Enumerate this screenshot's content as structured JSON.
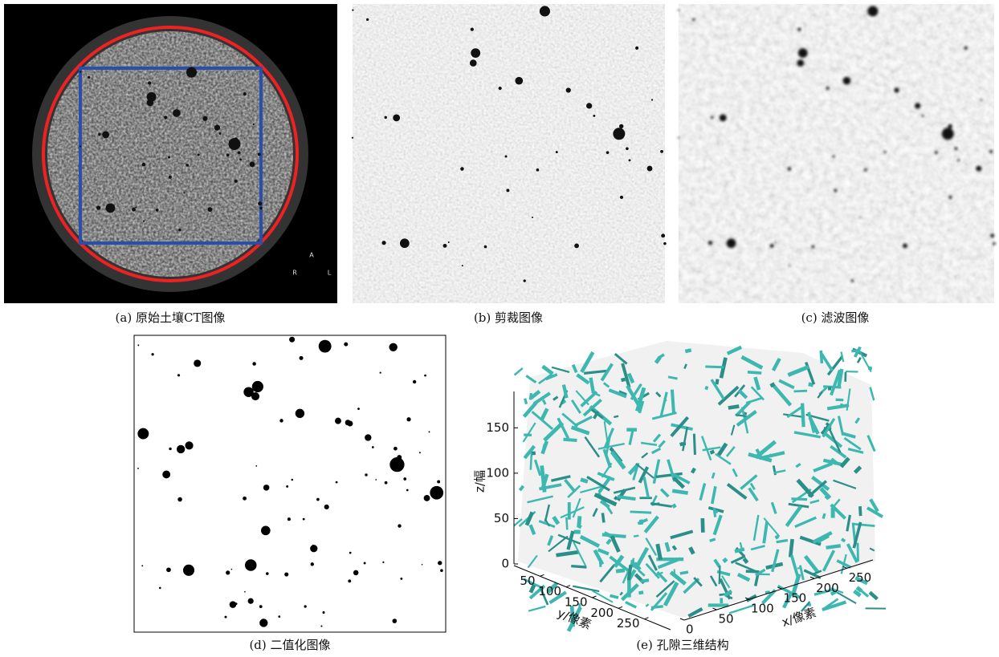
{
  "panels": {
    "a": {
      "caption": "(a) 原始土壤CT图像",
      "markers": [
        "A",
        "R",
        "L"
      ]
    },
    "b": {
      "caption": "(b) 剪裁图像"
    },
    "c": {
      "caption": "(c) 滤波图像"
    },
    "d": {
      "caption": "(d) 二值化图像"
    },
    "e": {
      "caption": "(e) 孔隙三维结构",
      "zlabel": "z/幅",
      "ylabel": "y/像素",
      "xlabel": "x/像素",
      "zticks": [
        0,
        50,
        100,
        150
      ],
      "zlim": [
        0,
        190
      ],
      "yticks": [
        50,
        100,
        150,
        200,
        250
      ],
      "ylim": [
        0,
        300
      ],
      "xticks": [
        0,
        50,
        100,
        150,
        200,
        250
      ],
      "xlim": [
        0,
        290
      ]
    }
  }
}
